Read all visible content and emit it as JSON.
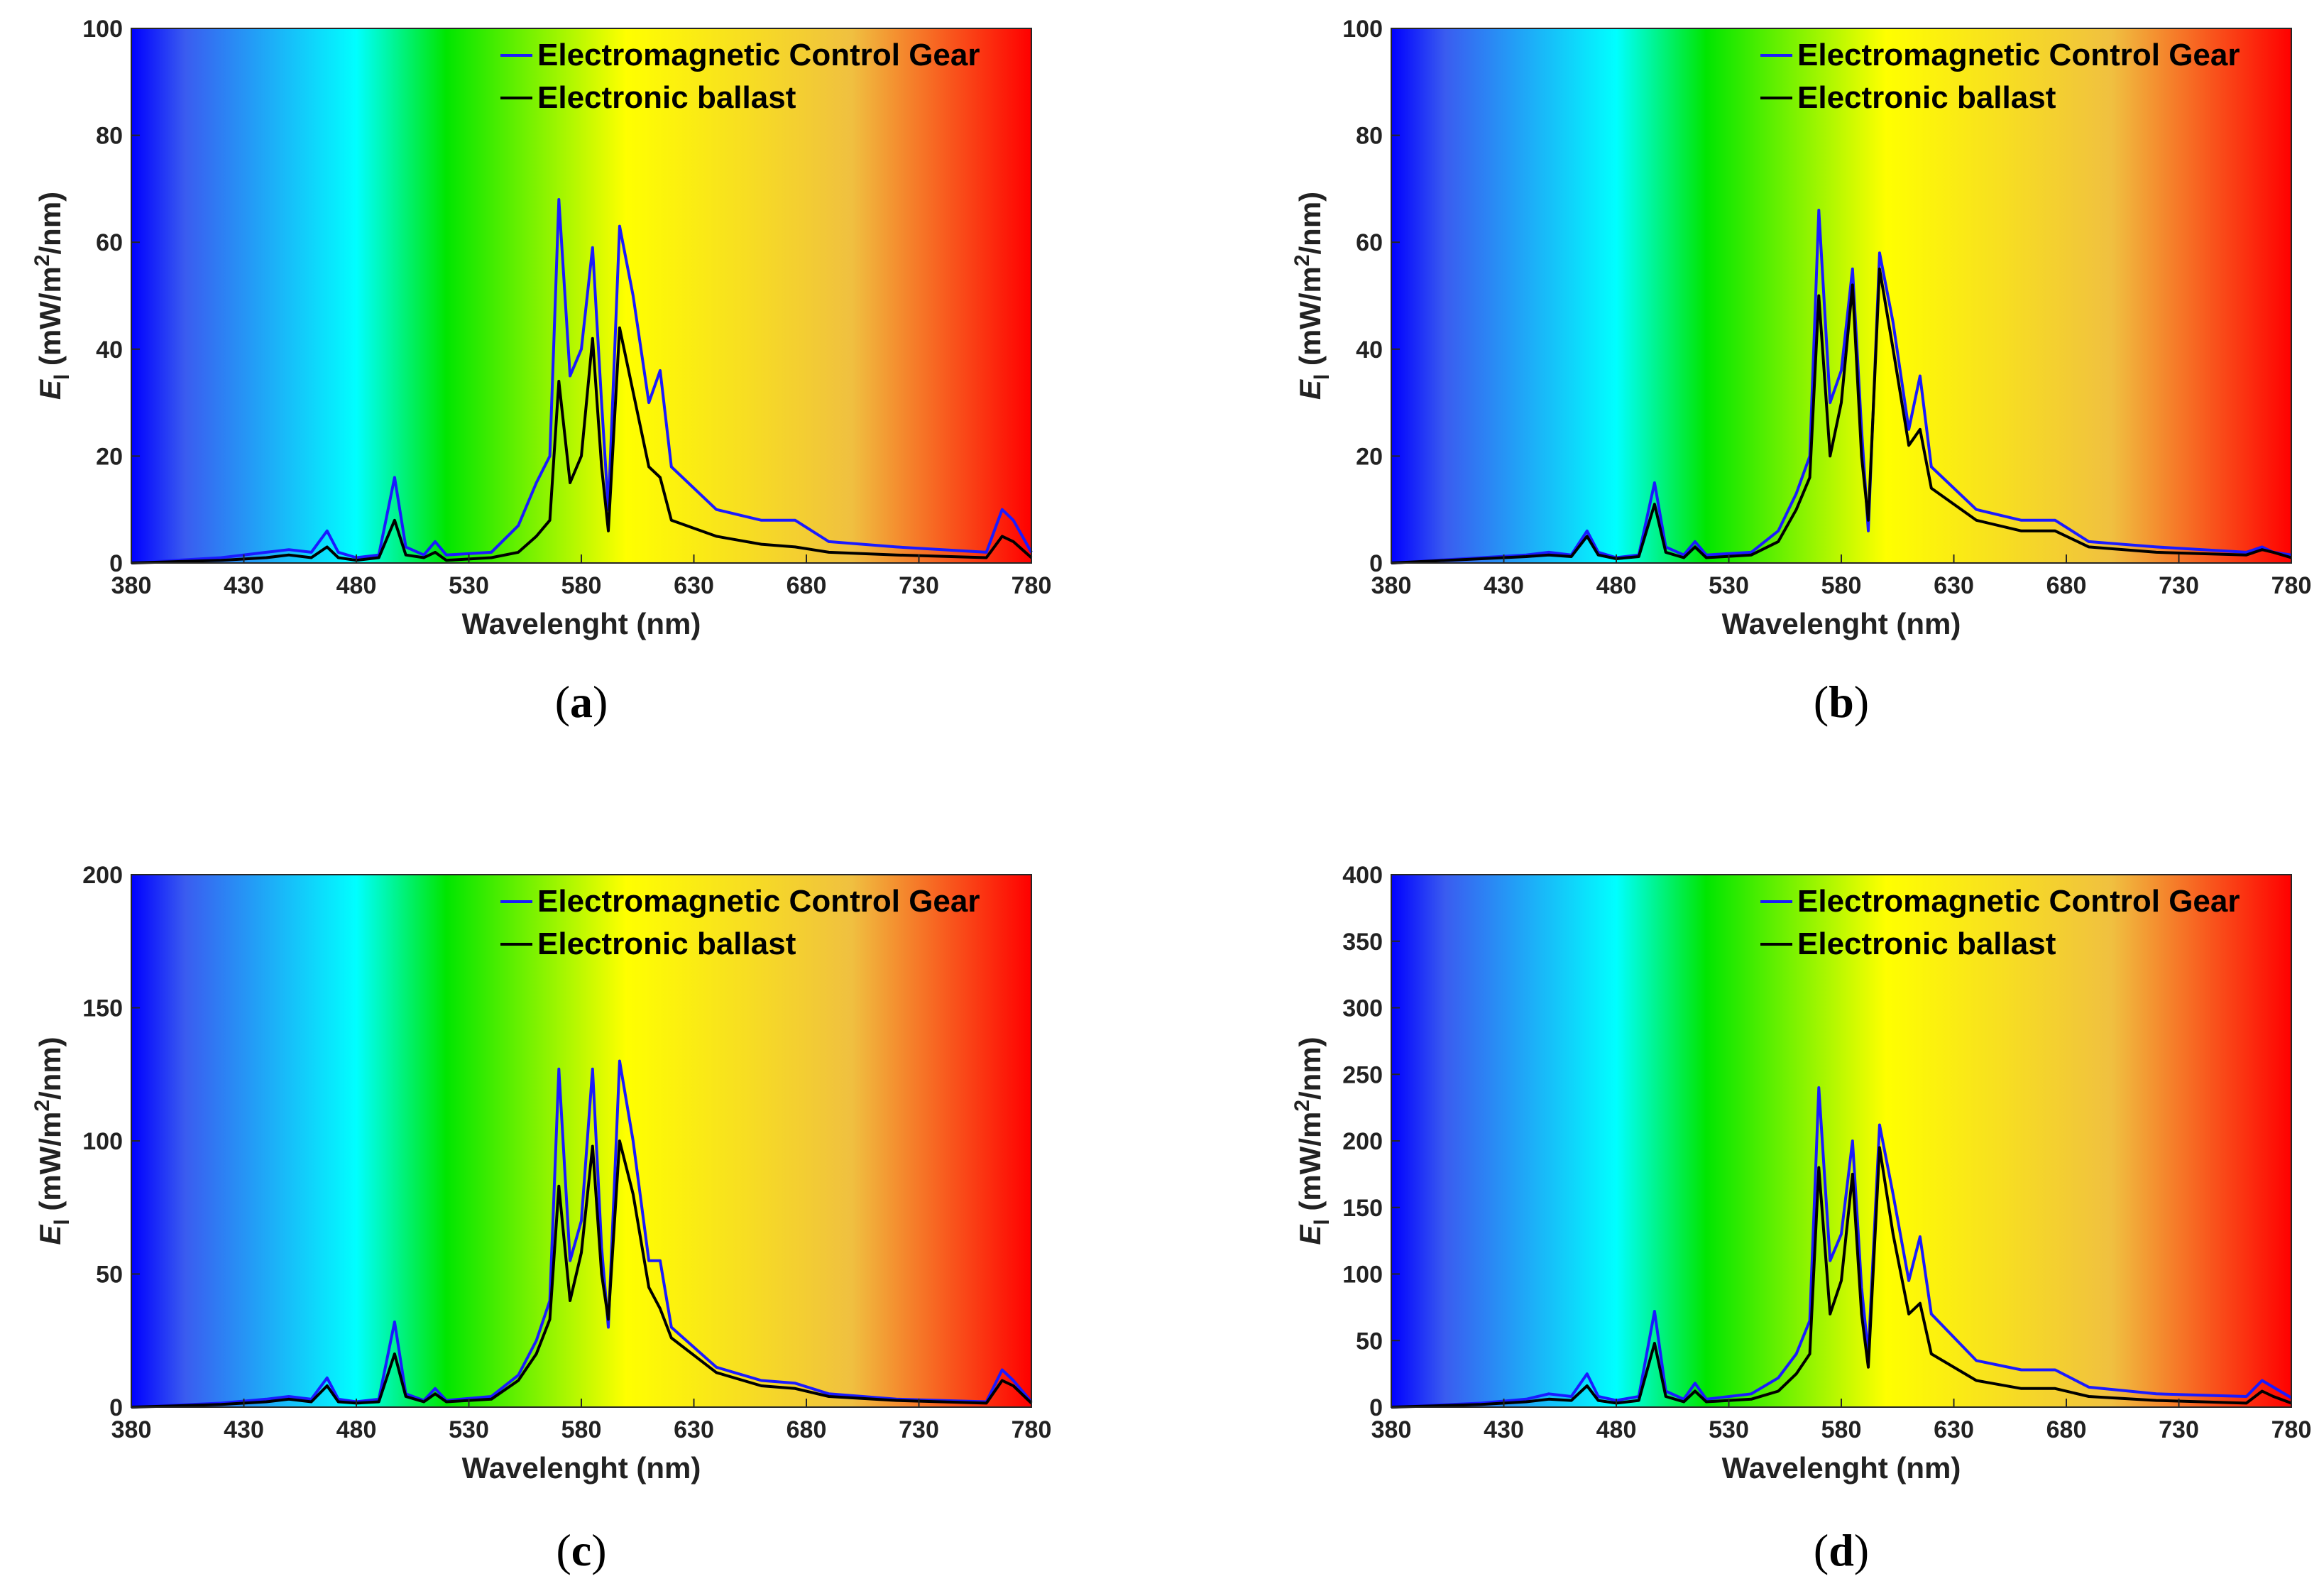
{
  "figure": {
    "xlabel": "Wavelenght (nm)",
    "ylabel_main": "E",
    "ylabel_sub": "l",
    "ylabel_unit_pre": " (mW/m",
    "ylabel_unit_sup": "2",
    "ylabel_unit_post": "/nm)"
  },
  "colors": {
    "electromagnetic": "#1a1aff",
    "electronic": "#000000",
    "spectrum": [
      "#0000ff",
      "#3a5cf0",
      "#00ffff",
      "#00e600",
      "#ffff00",
      "#f0c040",
      "#ff0000"
    ]
  },
  "chart_data": [
    {
      "type": "line",
      "panel": "a",
      "caption_open": "(",
      "caption_letter": "a",
      "caption_close": ")",
      "title": "",
      "xlabel": "Wavelenght (nm)",
      "ylabel": "El (mW/m2/nm)",
      "xlim": [
        380,
        780
      ],
      "ylim": [
        0,
        100
      ],
      "xticks": [
        380,
        430,
        480,
        530,
        580,
        630,
        680,
        730,
        780
      ],
      "yticks": [
        0,
        20,
        40,
        60,
        80,
        100
      ],
      "legend_location": "top-right",
      "series": [
        {
          "name": "Electromagnetic Control Gear",
          "x": [
            380,
            420,
            440,
            450,
            460,
            467,
            472,
            480,
            490,
            497,
            502,
            510,
            515,
            520,
            540,
            552,
            560,
            566,
            570,
            575,
            580,
            585,
            589,
            592,
            597,
            603,
            610,
            615,
            620,
            640,
            660,
            675,
            690,
            720,
            760,
            767,
            772,
            780
          ],
          "y": [
            0,
            1,
            2,
            2.5,
            2,
            6,
            2,
            1,
            1.5,
            16,
            3,
            1.5,
            4,
            1.5,
            2,
            7,
            15,
            20,
            68,
            35,
            40,
            59,
            30,
            10,
            63,
            50,
            30,
            36,
            18,
            10,
            8,
            8,
            4,
            3,
            2,
            10,
            8,
            2
          ]
        },
        {
          "name": "Electronic ballast",
          "x": [
            380,
            420,
            440,
            450,
            460,
            467,
            472,
            480,
            490,
            497,
            502,
            510,
            515,
            520,
            540,
            552,
            560,
            566,
            570,
            575,
            580,
            585,
            589,
            592,
            597,
            603,
            610,
            615,
            620,
            640,
            660,
            675,
            690,
            720,
            760,
            767,
            772,
            780
          ],
          "y": [
            0,
            0.5,
            1,
            1.5,
            1,
            3,
            1,
            0.5,
            1,
            8,
            1.5,
            1,
            2,
            0.5,
            1,
            2,
            5,
            8,
            34,
            15,
            20,
            42,
            18,
            6,
            44,
            32,
            18,
            16,
            8,
            5,
            3.5,
            3,
            2,
            1.5,
            1,
            5,
            4,
            1
          ]
        }
      ]
    },
    {
      "type": "line",
      "panel": "b",
      "caption_open": "(",
      "caption_letter": "b",
      "caption_close": ")",
      "title": "",
      "xlabel": "Wavelenght (nm)",
      "ylabel": "El (mW/m2/nm)",
      "xlim": [
        380,
        780
      ],
      "ylim": [
        0,
        100
      ],
      "xticks": [
        380,
        430,
        480,
        530,
        580,
        630,
        680,
        730,
        780
      ],
      "yticks": [
        0,
        20,
        40,
        60,
        80,
        100
      ],
      "legend_location": "top-right",
      "series": [
        {
          "name": "Electromagnetic Control Gear",
          "x": [
            380,
            420,
            440,
            450,
            460,
            467,
            472,
            480,
            490,
            497,
            502,
            510,
            515,
            520,
            540,
            552,
            560,
            566,
            570,
            575,
            580,
            585,
            589,
            592,
            597,
            603,
            610,
            615,
            620,
            640,
            660,
            675,
            690,
            720,
            760,
            767,
            772,
            780
          ],
          "y": [
            0,
            1,
            1.5,
            2,
            1.5,
            6,
            2,
            1,
            1.5,
            15,
            3,
            1.5,
            4,
            1.5,
            2,
            6,
            13,
            20,
            66,
            30,
            36,
            55,
            25,
            6,
            58,
            45,
            25,
            35,
            18,
            10,
            8,
            8,
            4,
            3,
            2,
            3,
            2,
            1.5
          ]
        },
        {
          "name": "Electronic ballast",
          "x": [
            380,
            420,
            440,
            450,
            460,
            467,
            472,
            480,
            490,
            497,
            502,
            510,
            515,
            520,
            540,
            552,
            560,
            566,
            570,
            575,
            580,
            585,
            589,
            592,
            597,
            603,
            610,
            615,
            620,
            640,
            660,
            675,
            690,
            720,
            760,
            767,
            772,
            780
          ],
          "y": [
            0,
            0.8,
            1.2,
            1.5,
            1.2,
            5,
            1.5,
            0.8,
            1.2,
            11,
            2,
            1,
            3,
            1,
            1.5,
            4,
            10,
            16,
            50,
            20,
            30,
            52,
            20,
            8,
            55,
            40,
            22,
            25,
            14,
            8,
            6,
            6,
            3,
            2,
            1.5,
            2.5,
            2,
            1
          ]
        }
      ]
    },
    {
      "type": "line",
      "panel": "c",
      "caption_open": "(",
      "caption_letter": "c",
      "caption_close": ")",
      "title": "",
      "xlabel": "Wavelenght (nm)",
      "ylabel": "El (mW/m2/nm)",
      "xlim": [
        380,
        780
      ],
      "ylim": [
        0,
        200
      ],
      "xticks": [
        380,
        430,
        480,
        530,
        580,
        630,
        680,
        730,
        780
      ],
      "yticks": [
        0,
        50,
        100,
        150,
        200
      ],
      "legend_location": "top-right",
      "series": [
        {
          "name": "Electromagnetic Control Gear",
          "x": [
            380,
            420,
            440,
            450,
            460,
            467,
            472,
            480,
            490,
            497,
            502,
            510,
            515,
            520,
            540,
            552,
            560,
            566,
            570,
            575,
            580,
            585,
            589,
            592,
            597,
            603,
            610,
            615,
            620,
            640,
            660,
            675,
            690,
            720,
            760,
            767,
            772,
            780
          ],
          "y": [
            0,
            1.5,
            3,
            4,
            3,
            11,
            3,
            2,
            3,
            32,
            5,
            2.5,
            7,
            2.5,
            4,
            12,
            25,
            40,
            127,
            55,
            70,
            127,
            60,
            30,
            130,
            100,
            55,
            55,
            30,
            15,
            10,
            9,
            5,
            3,
            2,
            14,
            10,
            2
          ]
        },
        {
          "name": "Electronic ballast",
          "x": [
            380,
            420,
            440,
            450,
            460,
            467,
            472,
            480,
            490,
            497,
            502,
            510,
            515,
            520,
            540,
            552,
            560,
            566,
            570,
            575,
            580,
            585,
            589,
            592,
            597,
            603,
            610,
            615,
            620,
            640,
            660,
            675,
            690,
            720,
            760,
            767,
            772,
            780
          ],
          "y": [
            0,
            1,
            2,
            3,
            2,
            8,
            2,
            1.5,
            2,
            20,
            4,
            2,
            5,
            2,
            3,
            10,
            20,
            33,
            83,
            40,
            58,
            98,
            50,
            33,
            100,
            80,
            45,
            37,
            26,
            13,
            8,
            7,
            4,
            2.5,
            1.5,
            10,
            8,
            1.5
          ]
        }
      ]
    },
    {
      "type": "line",
      "panel": "d",
      "caption_open": "(",
      "caption_letter": "d",
      "caption_close": ")",
      "title": "",
      "xlabel": "Wavelenght (nm)",
      "ylabel": "El (mW/m2/nm)",
      "xlim": [
        380,
        780
      ],
      "ylim": [
        0,
        400
      ],
      "xticks": [
        380,
        430,
        480,
        530,
        580,
        630,
        680,
        730,
        780
      ],
      "yticks": [
        0,
        50,
        100,
        150,
        200,
        250,
        300,
        350,
        400
      ],
      "legend_location": "top-right",
      "series": [
        {
          "name": "Electromagnetic Control Gear",
          "x": [
            380,
            420,
            440,
            450,
            460,
            467,
            472,
            480,
            490,
            497,
            502,
            510,
            515,
            520,
            540,
            552,
            560,
            566,
            570,
            575,
            580,
            585,
            589,
            592,
            597,
            603,
            610,
            615,
            620,
            640,
            660,
            675,
            690,
            720,
            760,
            767,
            772,
            780
          ],
          "y": [
            0,
            3,
            6,
            10,
            8,
            25,
            8,
            5,
            8,
            72,
            12,
            6,
            18,
            6,
            10,
            22,
            40,
            65,
            240,
            110,
            130,
            200,
            90,
            40,
            212,
            160,
            95,
            128,
            70,
            35,
            28,
            28,
            15,
            10,
            8,
            20,
            15,
            7
          ]
        },
        {
          "name": "Electronic ballast",
          "x": [
            380,
            420,
            440,
            450,
            460,
            467,
            472,
            480,
            490,
            497,
            502,
            510,
            515,
            520,
            540,
            552,
            560,
            566,
            570,
            575,
            580,
            585,
            589,
            592,
            597,
            603,
            610,
            615,
            620,
            640,
            660,
            675,
            690,
            720,
            760,
            767,
            772,
            780
          ],
          "y": [
            0,
            2,
            4,
            6,
            5,
            16,
            5,
            3,
            5,
            48,
            8,
            4,
            12,
            4,
            6,
            12,
            25,
            40,
            180,
            70,
            95,
            175,
            70,
            30,
            195,
            130,
            70,
            78,
            40,
            20,
            14,
            14,
            8,
            5,
            3,
            12,
            8,
            3
          ]
        }
      ]
    }
  ]
}
